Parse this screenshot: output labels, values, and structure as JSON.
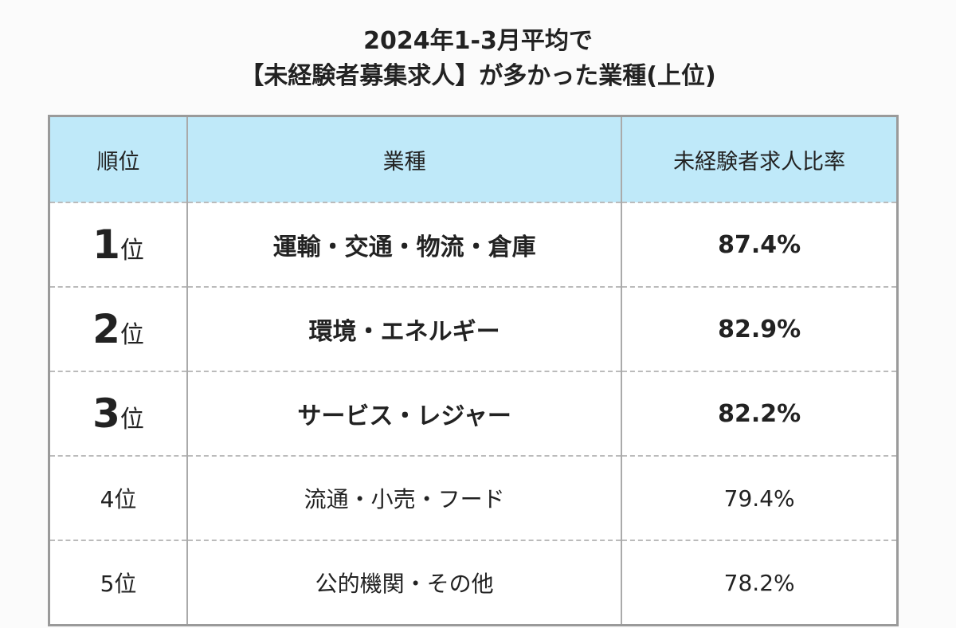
{
  "header": {
    "title_line1": "2024年1-3月平均で",
    "title_line2": "【未経験者募集求人】が多かった業種(上位)"
  },
  "table": {
    "columns": [
      "順位",
      "業種",
      "未経験者求人比率"
    ],
    "rows": [
      {
        "rank_number": "1",
        "rank_suffix": "位",
        "industry": "運輸・交通・物流・倉庫",
        "ratio": "87.4%"
      },
      {
        "rank_number": "2",
        "rank_suffix": "位",
        "industry": "環境・エネルギー",
        "ratio": "82.9%"
      },
      {
        "rank_number": "3",
        "rank_suffix": "位",
        "industry": "サービス・レジャー",
        "ratio": "82.2%"
      },
      {
        "rank_number": "4",
        "rank_suffix": "位",
        "industry": "流通・小売・フード",
        "ratio": "79.4%"
      },
      {
        "rank_number": "5",
        "rank_suffix": "位",
        "industry": "公的機関・その他",
        "ratio": "78.2%"
      }
    ]
  }
}
